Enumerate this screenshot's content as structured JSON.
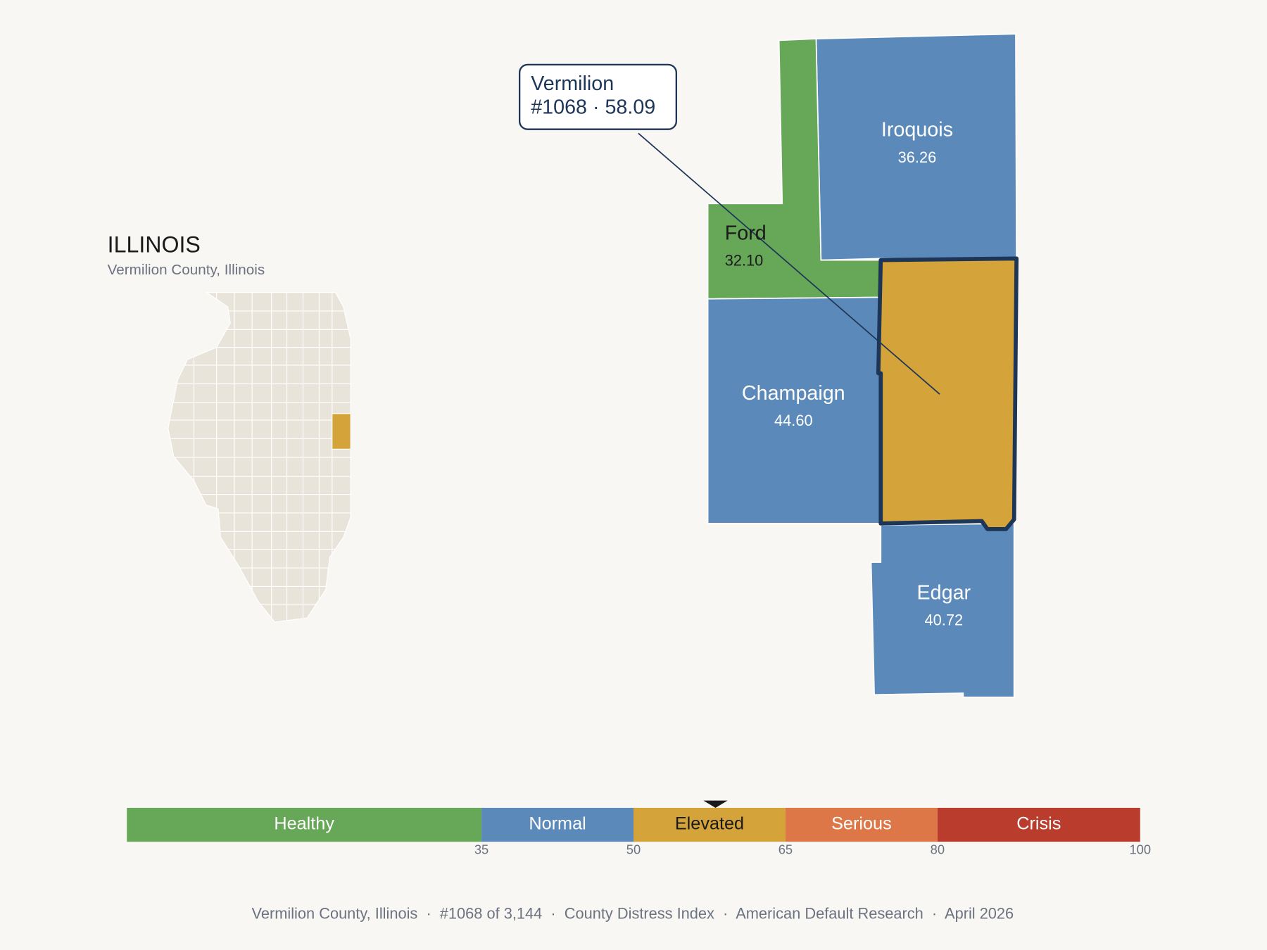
{
  "state": {
    "title": "ILLINOIS",
    "subtitle": "Vermilion County, Illinois"
  },
  "callout": {
    "title": "Vermilion",
    "detail": "#1068 · 58.09"
  },
  "counties": [
    {
      "name": "Iroquois",
      "score": "36.26",
      "color": "#5b89b9",
      "text_color": "#ffffff"
    },
    {
      "name": "Ford",
      "score": "32.10",
      "color": "#66a758",
      "text_color": "#1a1a1a"
    },
    {
      "name": "Champaign",
      "score": "44.60",
      "color": "#5b89b9",
      "text_color": "#ffffff"
    },
    {
      "name": "Vermilion",
      "color": "#d4a43a"
    },
    {
      "name": "Edgar",
      "score": "40.72",
      "color": "#5b89b9",
      "text_color": "#ffffff"
    }
  ],
  "scale": {
    "xlim": [
      0,
      100
    ],
    "xticks": [
      35,
      50,
      65,
      80,
      100
    ],
    "marker": 58.09,
    "bands": [
      {
        "label": "Healthy",
        "color": "#66a758",
        "text_color": "#ffffff"
      },
      {
        "label": "Normal",
        "color": "#5b89b9",
        "text_color": "#ffffff"
      },
      {
        "label": "Elevated",
        "color": "#d4a43a",
        "text_color": "#1a1a1a"
      },
      {
        "label": "Serious",
        "color": "#dd7748",
        "text_color": "#ffffff"
      },
      {
        "label": "Crisis",
        "color": "#b93c2c",
        "text_color": "#ffffff"
      }
    ]
  },
  "footer": "Vermilion County, Illinois  ·  #1068 of 3,144  ·  County Distress Index  ·  American Default Research  ·  April 2026"
}
